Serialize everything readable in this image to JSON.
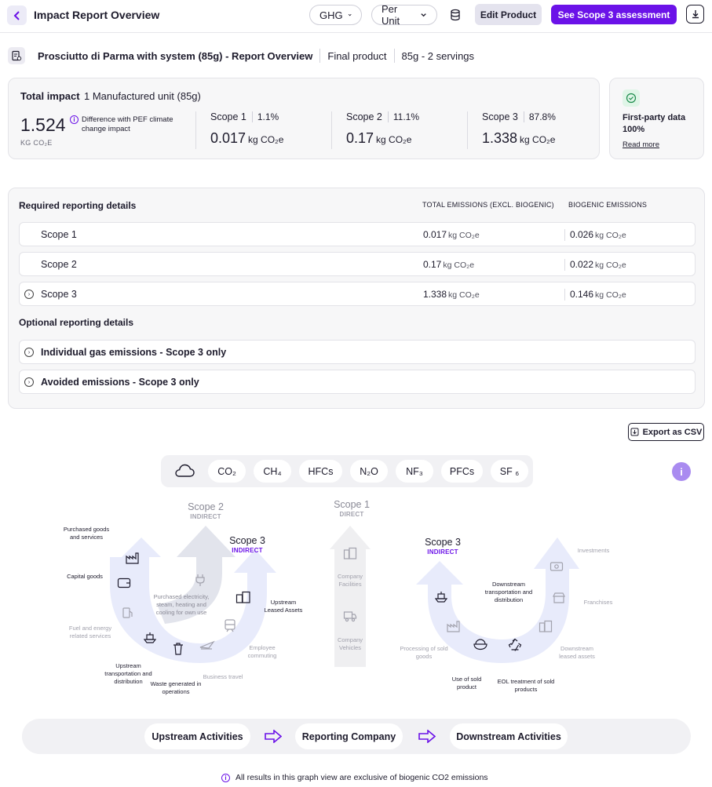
{
  "header": {
    "title": "Impact Report Overview",
    "method_select": "GHG",
    "unit_select": "Per Unit",
    "edit_label": "Edit Product",
    "scope3_label": "See Scope 3 assessment"
  },
  "product": {
    "name": "Prosciutto di Parma with system (85g) - Report Overview",
    "type": "Final product",
    "serving": "85g  - 2 servings"
  },
  "total": {
    "title": "Total impact",
    "unit_desc": "1 Manufactured unit (85g)",
    "value": "1.524",
    "unit": "KG CO₂E",
    "pef_note": "Difference with PEF climate change impact",
    "scopes": [
      {
        "name": "Scope 1",
        "pct": "1.1%",
        "value": "0.017",
        "unit": "kg CO₂e"
      },
      {
        "name": "Scope 2",
        "pct": "11.1%",
        "value": "0.17",
        "unit": "kg CO₂e"
      },
      {
        "name": "Scope 3",
        "pct": "87.8%",
        "value": "1.338",
        "unit": "kg CO₂e"
      }
    ]
  },
  "first_party": {
    "title": "First-party data",
    "value": "100%",
    "link": "Read more"
  },
  "reporting": {
    "title": "Required reporting details",
    "col_total": "TOTAL EMISSIONS (EXCL. BIOGENIC)",
    "col_biogenic": "BIOGENIC EMISSIONS",
    "rows": [
      {
        "label": "Scope 1",
        "total": "0.017",
        "biogenic": "0.026",
        "unit": "kg CO₂e"
      },
      {
        "label": "Scope 2",
        "total": "0.17",
        "biogenic": "0.022",
        "unit": "kg CO₂e"
      },
      {
        "label": "Scope 3",
        "total": "1.338",
        "biogenic": "0.146",
        "unit": "kg CO₂e"
      }
    ],
    "optional_title": "Optional reporting details",
    "optional_rows": [
      "Individual gas emissions - Scope 3 only",
      "Avoided emissions - Scope 3 only"
    ]
  },
  "export_label": "Export as CSV",
  "gases": [
    "CO₂",
    "CH₄",
    "HFCs",
    "N₂O",
    "NF₃",
    "PFCs",
    "SF ₆"
  ],
  "diagram": {
    "scope2": {
      "title": "Scope 2",
      "sub": "INDIRECT"
    },
    "scope3_up": {
      "title": "Scope 3",
      "sub": "INDIRECT"
    },
    "scope1": {
      "title": "Scope 1",
      "sub": "DIRECT"
    },
    "scope3_down": {
      "title": "Scope 3",
      "sub": "INDIRECT"
    },
    "up_labels": {
      "purchased_goods": "Purchased goods and services",
      "capital_goods": "Capital goods",
      "fuel": "Fuel and energy related services",
      "upstream_transport": "Upstream transportation and distribution",
      "waste": "Waste generated in operations",
      "business_travel": "Business travel",
      "commuting": "Employee commuting",
      "leased": "Upstream Leased Assets",
      "electricity": "Purchased electricity, steam, heating and cooling for own use"
    },
    "direct_labels": {
      "facilities": "Company Facilities",
      "vehicles": "Company Vehicles"
    },
    "down_labels": {
      "downstream_transport": "Downstream transportation and distribution",
      "investments": "Investments",
      "franchises": "Franchises",
      "leased": "Downstream leased assets",
      "processing": "Processing of sold goods",
      "use": "Use of sold product",
      "eol": "EOL treatment of sold products"
    }
  },
  "flow": [
    "Upstream Activities",
    "Reporting Company",
    "Downstream Activities"
  ],
  "footnote": "All results in this graph view are exclusive of biogenic CO2 emissions",
  "colors": {
    "accent": "#6b12e8",
    "arrow_fill": "#e8ebfb",
    "grey_arrow": "#efeff1"
  }
}
